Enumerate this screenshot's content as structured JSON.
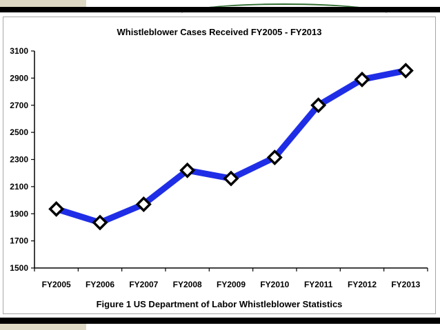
{
  "chart_data": {
    "type": "line",
    "title": "Whistleblower Cases Received FY2005 - FY2013",
    "categories": [
      "FY2005",
      "FY2006",
      "FY2007",
      "FY2008",
      "FY2009",
      "FY2010",
      "FY2011",
      "FY2012",
      "FY2013"
    ],
    "values": [
      1935,
      1835,
      1970,
      2220,
      2160,
      2315,
      2700,
      2890,
      2955
    ],
    "ylim": [
      1500,
      3100
    ],
    "yticks": [
      1500,
      1700,
      1900,
      2100,
      2300,
      2500,
      2700,
      2900,
      3100
    ],
    "ytick_labels": [
      "1500",
      "1700",
      "1900",
      "2100",
      "2300",
      "2500",
      "2700",
      "2900",
      "3100"
    ],
    "xlabel": "",
    "ylabel": "",
    "grid": false,
    "legend": "none",
    "line_color": "#1f2ee6",
    "marker": "white diamond with black border"
  },
  "caption": "Figure 1 US Department of Labor Whistleblower Statistics"
}
